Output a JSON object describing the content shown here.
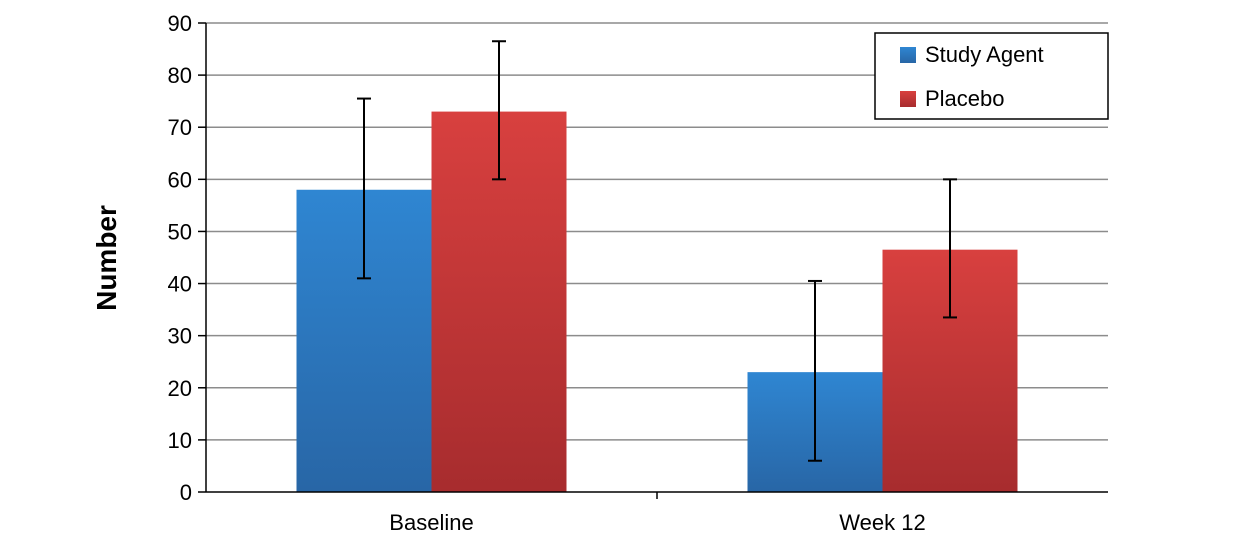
{
  "chart_data": {
    "type": "bar",
    "title": "",
    "xlabel": "",
    "ylabel": "Number",
    "ylim": [
      0,
      90
    ],
    "yticks": [
      0,
      10,
      20,
      30,
      40,
      50,
      60,
      70,
      80,
      90
    ],
    "categories": [
      "Baseline",
      "Week 12"
    ],
    "grid": true,
    "legend_position": "top-right",
    "series": [
      {
        "name": "Study Agent",
        "values": [
          58,
          23
        ],
        "error_low": [
          41,
          6
        ],
        "error_high": [
          75.5,
          40.5
        ],
        "color": "#2b7fc9"
      },
      {
        "name": "Placebo",
        "values": [
          73,
          46.5
        ],
        "error_low": [
          60,
          33.5
        ],
        "error_high": [
          86.5,
          60
        ],
        "color": "#d43a3f"
      }
    ]
  }
}
